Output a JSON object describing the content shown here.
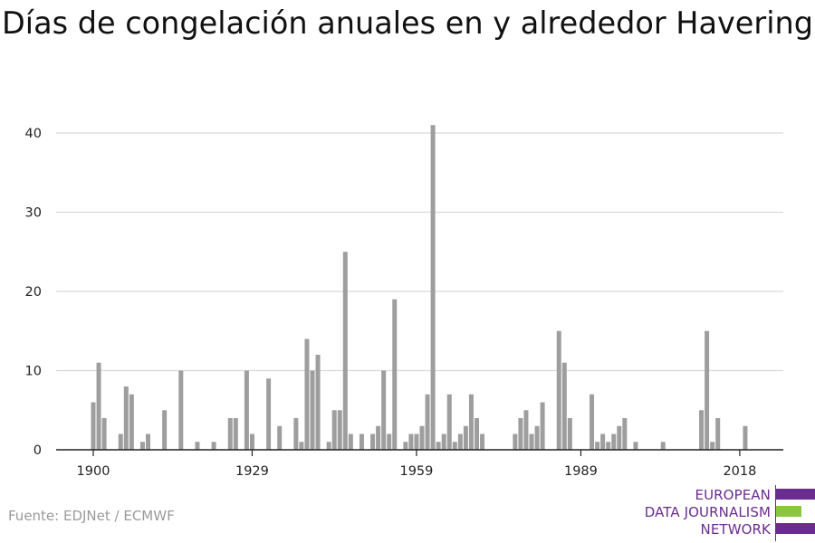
{
  "title": "Días de congelación anuales en y alrededor Havering",
  "source": "Fuente: EDJNet / ECMWF",
  "logo": {
    "lines": [
      "EUROPEAN",
      "DATA JOURNALISM",
      "NETWORK"
    ],
    "colors": {
      "purple": "#6b2c91",
      "green": "#8cc63f"
    }
  },
  "colors": {
    "bar": "#9e9e9e",
    "grid": "#d9d9d9",
    "axis": "#222222",
    "tick_text": "#222222"
  },
  "chart_data": {
    "type": "bar",
    "title": "Días de congelación anuales en y alrededor Havering",
    "xlabel": "",
    "ylabel": "",
    "ylim": [
      0,
      40
    ],
    "yticks": [
      0,
      10,
      20,
      30,
      40
    ],
    "xticks": [
      1900,
      1929,
      1959,
      1989,
      2018
    ],
    "xrange": [
      1894,
      2024
    ],
    "grid": true,
    "x": [
      1900,
      1901,
      1902,
      1903,
      1904,
      1905,
      1906,
      1907,
      1908,
      1909,
      1910,
      1911,
      1912,
      1913,
      1914,
      1915,
      1916,
      1917,
      1918,
      1919,
      1920,
      1921,
      1922,
      1923,
      1924,
      1925,
      1926,
      1927,
      1928,
      1929,
      1930,
      1931,
      1932,
      1933,
      1934,
      1935,
      1936,
      1937,
      1938,
      1939,
      1940,
      1941,
      1942,
      1943,
      1944,
      1945,
      1946,
      1947,
      1948,
      1949,
      1950,
      1951,
      1952,
      1953,
      1954,
      1955,
      1956,
      1957,
      1958,
      1959,
      1960,
      1961,
      1962,
      1963,
      1964,
      1965,
      1966,
      1967,
      1968,
      1969,
      1970,
      1971,
      1972,
      1973,
      1974,
      1975,
      1976,
      1977,
      1978,
      1979,
      1980,
      1981,
      1982,
      1983,
      1984,
      1985,
      1986,
      1987,
      1988,
      1989,
      1990,
      1991,
      1992,
      1993,
      1994,
      1995,
      1996,
      1997,
      1998,
      1999,
      2000,
      2001,
      2002,
      2003,
      2004,
      2005,
      2006,
      2007,
      2008,
      2009,
      2010,
      2011,
      2012,
      2013,
      2014,
      2015,
      2016,
      2017,
      2018,
      2019,
      2020
    ],
    "values": [
      6,
      11,
      4,
      0,
      0,
      2,
      8,
      7,
      0,
      1,
      2,
      0,
      0,
      5,
      0,
      0,
      10,
      0,
      0,
      1,
      0,
      0,
      1,
      0,
      0,
      4,
      4,
      0,
      10,
      2,
      0,
      0,
      9,
      0,
      3,
      0,
      0,
      4,
      1,
      14,
      10,
      12,
      0,
      1,
      5,
      5,
      25,
      2,
      0,
      2,
      0,
      2,
      3,
      10,
      2,
      19,
      0,
      1,
      2,
      2,
      3,
      7,
      41,
      1,
      2,
      7,
      1,
      2,
      3,
      7,
      4,
      2,
      0,
      0,
      0,
      0,
      0,
      2,
      4,
      5,
      2,
      3,
      6,
      0,
      0,
      15,
      11,
      4,
      0,
      0,
      0,
      7,
      1,
      2,
      1,
      2,
      3,
      4,
      0,
      1,
      0,
      0,
      0,
      0,
      1,
      0,
      0,
      0,
      0,
      0,
      0,
      5,
      15,
      1,
      4,
      0,
      0,
      0,
      0,
      3,
      0
    ]
  }
}
